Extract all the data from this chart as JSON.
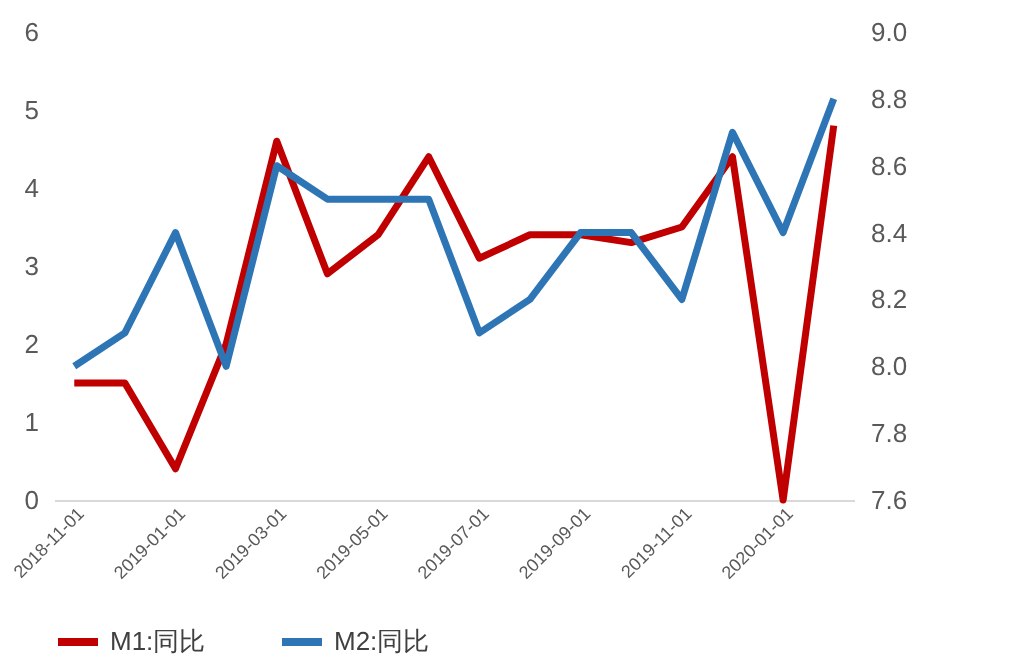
{
  "chart_data": {
    "type": "line",
    "categories": [
      "2018-11-01",
      null,
      "2019-01-01",
      null,
      "2019-03-01",
      null,
      "2019-05-01",
      null,
      "2019-07-01",
      null,
      "2019-09-01",
      null,
      "2019-11-01",
      null,
      "2020-01-01",
      null
    ],
    "series": [
      {
        "name": "M1:同比",
        "color": "#c00000",
        "values": [
          1.5,
          1.5,
          0.4,
          2.0,
          4.6,
          2.9,
          3.4,
          4.4,
          3.1,
          3.4,
          3.4,
          3.3,
          3.5,
          4.4,
          0.0,
          4.8
        ]
      },
      {
        "name": "M2:同比",
        "color": "#2e75b6",
        "axis": "y2",
        "values": [
          8.0,
          8.1,
          8.4,
          8.0,
          8.6,
          8.5,
          8.5,
          8.5,
          8.1,
          8.2,
          8.4,
          8.4,
          8.2,
          8.7,
          8.4,
          8.8
        ]
      }
    ],
    "ylim": [
      0,
      6
    ],
    "yticks": [
      0,
      1,
      2,
      3,
      4,
      5,
      6
    ],
    "y2lim": [
      7.6,
      9.0
    ],
    "y2ticks": [
      7.6,
      7.8,
      {
        "value": 8,
        "label": "8.0"
      },
      8.2,
      8.4,
      8.6,
      8.8,
      {
        "value": 9,
        "label": "9.0"
      }
    ],
    "grid": false,
    "legend": "bottom",
    "line_style": "solid",
    "marker": "none"
  }
}
